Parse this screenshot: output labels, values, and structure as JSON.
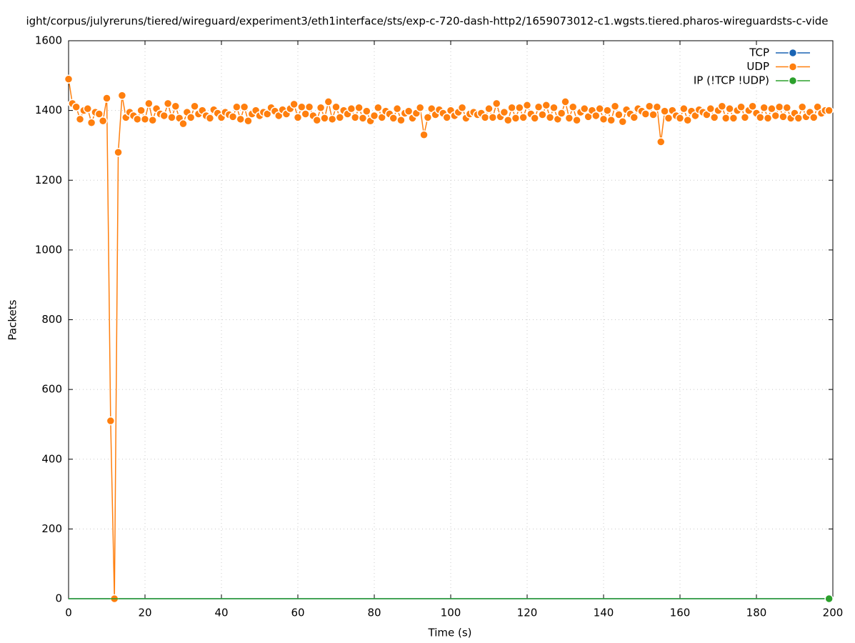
{
  "chart_data": {
    "type": "line",
    "title": "ight/corpus/julyreruns/tiered/wireguard/experiment3/eth1interface/sts/exp-c-720-dash-http2/1659073012-c1.wgsts.tiered.pharos-wireguardsts-c-vide",
    "xlabel": "Time (s)",
    "ylabel": "Packets",
    "xlim": [
      0,
      200
    ],
    "ylim": [
      0,
      1600
    ],
    "xticks": [
      0,
      20,
      40,
      60,
      80,
      100,
      120,
      140,
      160,
      180,
      200
    ],
    "yticks": [
      0,
      200,
      400,
      600,
      800,
      1000,
      1200,
      1400,
      1600
    ],
    "grid": true,
    "legend": "top-right",
    "x": [
      0,
      1,
      2,
      3,
      4,
      5,
      6,
      7,
      8,
      9,
      10,
      11,
      12,
      13,
      14,
      15,
      16,
      17,
      18,
      19,
      20,
      21,
      22,
      23,
      24,
      25,
      26,
      27,
      28,
      29,
      30,
      31,
      32,
      33,
      34,
      35,
      36,
      37,
      38,
      39,
      40,
      41,
      42,
      43,
      44,
      45,
      46,
      47,
      48,
      49,
      50,
      51,
      52,
      53,
      54,
      55,
      56,
      57,
      58,
      59,
      60,
      61,
      62,
      63,
      64,
      65,
      66,
      67,
      68,
      69,
      70,
      71,
      72,
      73,
      74,
      75,
      76,
      77,
      78,
      79,
      80,
      81,
      82,
      83,
      84,
      85,
      86,
      87,
      88,
      89,
      90,
      91,
      92,
      93,
      94,
      95,
      96,
      97,
      98,
      99,
      100,
      101,
      102,
      103,
      104,
      105,
      106,
      107,
      108,
      109,
      110,
      111,
      112,
      113,
      114,
      115,
      116,
      117,
      118,
      119,
      120,
      121,
      122,
      123,
      124,
      125,
      126,
      127,
      128,
      129,
      130,
      131,
      132,
      133,
      134,
      135,
      136,
      137,
      138,
      139,
      140,
      141,
      142,
      143,
      144,
      145,
      146,
      147,
      148,
      149,
      150,
      151,
      152,
      153,
      154,
      155,
      156,
      157,
      158,
      159,
      160,
      161,
      162,
      163,
      164,
      165,
      166,
      167,
      168,
      169,
      170,
      171,
      172,
      173,
      174,
      175,
      176,
      177,
      178,
      179,
      180,
      181,
      182,
      183,
      184,
      185,
      186,
      187,
      188,
      189,
      190,
      191,
      192,
      193,
      194,
      195,
      196,
      197,
      198,
      199
    ],
    "series": [
      {
        "name": "TCP",
        "color": "#1a64b4",
        "values": [
          0,
          0,
          0,
          0,
          0,
          0,
          0,
          0,
          0,
          0,
          0,
          0,
          0,
          0,
          0,
          0,
          0,
          0,
          0,
          0,
          0,
          0,
          0,
          0,
          0,
          0,
          0,
          0,
          0,
          0,
          0,
          0,
          0,
          0,
          0,
          0,
          0,
          0,
          0,
          0,
          0,
          0,
          0,
          0,
          0,
          0,
          0,
          0,
          0,
          0,
          0,
          0,
          0,
          0,
          0,
          0,
          0,
          0,
          0,
          0,
          0,
          0,
          0,
          0,
          0,
          0,
          0,
          0,
          0,
          0,
          0,
          0,
          0,
          0,
          0,
          0,
          0,
          0,
          0,
          0,
          0,
          0,
          0,
          0,
          0,
          0,
          0,
          0,
          0,
          0,
          0,
          0,
          0,
          0,
          0,
          0,
          0,
          0,
          0,
          0,
          0,
          0,
          0,
          0,
          0,
          0,
          0,
          0,
          0,
          0,
          0,
          0,
          0,
          0,
          0,
          0,
          0,
          0,
          0,
          0,
          0,
          0,
          0,
          0,
          0,
          0,
          0,
          0,
          0,
          0,
          0,
          0,
          0,
          0,
          0,
          0,
          0,
          0,
          0,
          0,
          0,
          0,
          0,
          0,
          0,
          0,
          0,
          0,
          0,
          0,
          0,
          0,
          0,
          0,
          0,
          0,
          0,
          0,
          0,
          0,
          0,
          0,
          0,
          0,
          0,
          0,
          0,
          0,
          0,
          0,
          0,
          0,
          0,
          0,
          0,
          0,
          0,
          0,
          0,
          0,
          0,
          0,
          0,
          0,
          0,
          0,
          0,
          0,
          0,
          0,
          0,
          0,
          0,
          0,
          0,
          0,
          0,
          0,
          0,
          0
        ]
      },
      {
        "name": "UDP",
        "color": "#ff7f0e",
        "values": [
          1490,
          1420,
          1410,
          1375,
          1400,
          1405,
          1365,
          1395,
          1390,
          1370,
          1435,
          510,
          0,
          1280,
          1443,
          1380,
          1395,
          1385,
          1375,
          1400,
          1375,
          1420,
          1372,
          1405,
          1390,
          1385,
          1420,
          1380,
          1412,
          1378,
          1362,
          1395,
          1380,
          1412,
          1390,
          1400,
          1385,
          1378,
          1402,
          1392,
          1380,
          1395,
          1388,
          1382,
          1410,
          1375,
          1410,
          1370,
          1390,
          1400,
          1385,
          1395,
          1390,
          1408,
          1398,
          1385,
          1402,
          1390,
          1405,
          1418,
          1380,
          1410,
          1390,
          1410,
          1385,
          1372,
          1408,
          1378,
          1425,
          1375,
          1410,
          1380,
          1400,
          1390,
          1405,
          1380,
          1408,
          1378,
          1398,
          1370,
          1385,
          1408,
          1380,
          1398,
          1390,
          1378,
          1405,
          1372,
          1392,
          1398,
          1378,
          1392,
          1408,
          1330,
          1380,
          1405,
          1388,
          1402,
          1392,
          1380,
          1400,
          1385,
          1395,
          1408,
          1378,
          1390,
          1395,
          1388,
          1392,
          1380,
          1405,
          1380,
          1420,
          1382,
          1395,
          1372,
          1408,
          1378,
          1408,
          1380,
          1415,
          1390,
          1378,
          1410,
          1388,
          1415,
          1380,
          1408,
          1375,
          1392,
          1425,
          1378,
          1410,
          1372,
          1395,
          1405,
          1382,
          1400,
          1385,
          1405,
          1375,
          1400,
          1372,
          1412,
          1388,
          1368,
          1402,
          1390,
          1380,
          1405,
          1398,
          1390,
          1412,
          1388,
          1410,
          1310,
          1398,
          1378,
          1400,
          1385,
          1378,
          1405,
          1372,
          1398,
          1385,
          1402,
          1395,
          1388,
          1405,
          1380,
          1400,
          1412,
          1378,
          1405,
          1378,
          1400,
          1410,
          1380,
          1400,
          1412,
          1392,
          1380,
          1408,
          1378,
          1405,
          1385,
          1410,
          1382,
          1408,
          1378,
          1392,
          1378,
          1410,
          1382,
          1395,
          1380,
          1410,
          1392,
          1400,
          1400
        ]
      },
      {
        "name": "IP (!TCP  !UDP)",
        "color": "#2ca02c",
        "values": [
          0,
          0,
          0,
          0,
          0,
          0,
          0,
          0,
          0,
          0,
          0,
          0,
          0,
          0,
          0,
          0,
          0,
          0,
          0,
          0,
          0,
          0,
          0,
          0,
          0,
          0,
          0,
          0,
          0,
          0,
          0,
          0,
          0,
          0,
          0,
          0,
          0,
          0,
          0,
          0,
          0,
          0,
          0,
          0,
          0,
          0,
          0,
          0,
          0,
          0,
          0,
          0,
          0,
          0,
          0,
          0,
          0,
          0,
          0,
          0,
          0,
          0,
          0,
          0,
          0,
          0,
          0,
          0,
          0,
          0,
          0,
          0,
          0,
          0,
          0,
          0,
          0,
          0,
          0,
          0,
          0,
          0,
          0,
          0,
          0,
          0,
          0,
          0,
          0,
          0,
          0,
          0,
          0,
          0,
          0,
          0,
          0,
          0,
          0,
          0,
          0,
          0,
          0,
          0,
          0,
          0,
          0,
          0,
          0,
          0,
          0,
          0,
          0,
          0,
          0,
          0,
          0,
          0,
          0,
          0,
          0,
          0,
          0,
          0,
          0,
          0,
          0,
          0,
          0,
          0,
          0,
          0,
          0,
          0,
          0,
          0,
          0,
          0,
          0,
          0,
          0,
          0,
          0,
          0,
          0,
          0,
          0,
          0,
          0,
          0,
          0,
          0,
          0,
          0,
          0,
          0,
          0,
          0,
          0,
          0,
          0,
          0,
          0,
          0,
          0,
          0,
          0,
          0,
          0,
          0,
          0,
          0,
          0,
          0,
          0,
          0,
          0,
          0,
          0,
          0,
          0,
          0,
          0,
          0,
          0,
          0,
          0,
          0,
          0,
          0,
          0,
          0,
          0,
          0,
          0,
          0,
          0,
          0,
          0,
          0
        ]
      }
    ]
  }
}
